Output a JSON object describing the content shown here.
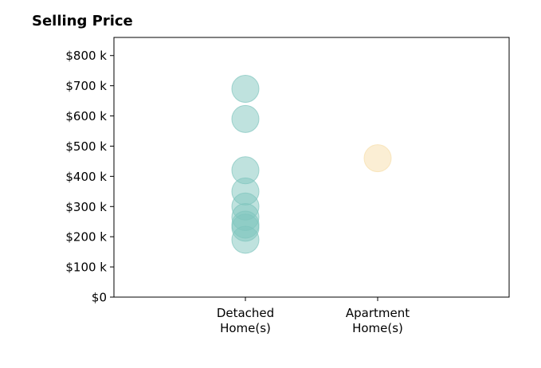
{
  "chart_data": {
    "type": "scatter",
    "title": "Selling Price",
    "xlabel": "",
    "ylabel": "",
    "categories": [
      "Detached\nHome(s)",
      "Apartment\nHome(s)"
    ],
    "ylim": [
      0,
      860000
    ],
    "yticks": [
      0,
      100000,
      200000,
      300000,
      400000,
      500000,
      600000,
      700000,
      800000
    ],
    "ytick_labels": [
      "$0",
      "$100 k",
      "$200 k",
      "$300 k",
      "$400 k",
      "$500 k",
      "$600 k",
      "$700 k",
      "$800 k"
    ],
    "grid": false,
    "series": [
      {
        "category": "Detached\nHome(s)",
        "color": "#7fc5be",
        "values": [
          690000,
          590000,
          420000,
          350000,
          300000,
          265000,
          240000,
          230000,
          190000
        ]
      },
      {
        "category": "Apartment\nHome(s)",
        "color": "#f7deaa",
        "values": [
          460000
        ]
      }
    ]
  }
}
